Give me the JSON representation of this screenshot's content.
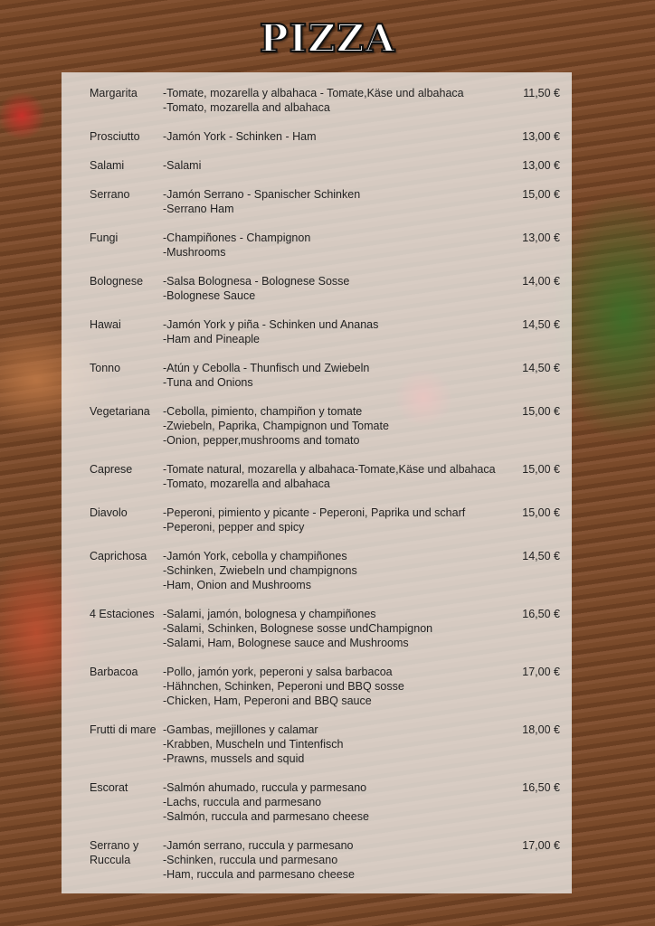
{
  "title": "PIZZA",
  "items": [
    {
      "name": "Margarita",
      "lines": [
        "-Tomate, mozarella y albahaca - Tomate,Käse und albahaca",
        "-Tomato, mozarella and albahaca"
      ],
      "price": "11,50 €"
    },
    {
      "name": "Prosciutto",
      "lines": [
        "-Jamón York - Schinken - Ham"
      ],
      "price": "13,00 €"
    },
    {
      "name": "Salami",
      "lines": [
        "-Salami"
      ],
      "price": "13,00 €"
    },
    {
      "name": "Serrano",
      "lines": [
        "-Jamón Serrano - Spanischer Schinken",
        "-Serrano Ham"
      ],
      "price": "15,00 €"
    },
    {
      "name": "Fungi",
      "lines": [
        "-Champiñones - Champignon",
        "-Mushrooms"
      ],
      "price": "13,00 €"
    },
    {
      "name": "Bolognese",
      "lines": [
        "-Salsa Bolognesa - Bolognese Sosse",
        "-Bolognese Sauce"
      ],
      "price": "14,00 €"
    },
    {
      "name": "Hawai",
      "lines": [
        "-Jamón York y piña - Schinken und Ananas",
        "-Ham and Pineaple"
      ],
      "price": "14,50 €"
    },
    {
      "name": "Tonno",
      "lines": [
        "-Atún y Cebolla - Thunfisch und Zwiebeln",
        "-Tuna and Onions"
      ],
      "price": "14,50 €"
    },
    {
      "name": "Vegetariana",
      "lines": [
        "-Cebolla, pimiento, champiñon y tomate",
        "-Zwiebeln, Paprika, Champignon und Tomate",
        "-Onion, pepper,mushrooms and tomato"
      ],
      "price": "15,00 €"
    },
    {
      "name": "Caprese",
      "lines": [
        "-Tomate natural, mozarella y albahaca-Tomate,Käse und albahaca",
        "-Tomato, mozarella and albahaca"
      ],
      "price": "15,00 €"
    },
    {
      "name": "Diavolo",
      "lines": [
        "-Peperoni, pimiento y picante - Peperoni, Paprika und scharf",
        "-Peperoni, pepper and spicy"
      ],
      "price": "15,00 €"
    },
    {
      "name": "Caprichosa",
      "lines": [
        "-Jamón York, cebolla y champiñones",
        "-Schinken, Zwiebeln und champignons",
        "-Ham, Onion and Mushrooms"
      ],
      "price": "14,50 €"
    },
    {
      "name": "4 Estaciones",
      "lines": [
        "-Salami, jamón, bolognesa y champiñones",
        "-Salami, Schinken, Bolognese sosse undChampignon",
        "-Salami, Ham,  Bolognese sauce and Mushrooms"
      ],
      "price": "16,50 €"
    },
    {
      "name": "Barbacoa",
      "lines": [
        "-Pollo, jamón york, peperoni y salsa barbacoa",
        "-Hähnchen, Schinken, Peperoni und BBQ sosse",
        "-Chicken, Ham, Peperoni and BBQ sauce"
      ],
      "price": "17,00 €"
    },
    {
      "name": "Frutti di mare",
      "lines": [
        "-Gambas, mejillones y calamar",
        "-Krabben, Muscheln und Tintenfisch",
        "-Prawns, mussels and squid"
      ],
      "price": "18,00 €"
    },
    {
      "name": "Escorat",
      "lines": [
        "-Salmón ahumado, ruccula y parmesano",
        "-Lachs, ruccula and parmesano",
        "-Salmón, ruccula and parmesano cheese"
      ],
      "price": "16,50 €"
    },
    {
      "name": "Serrano y Ruccula",
      "lines": [
        "-Jamón serrano, ruccula y parmesano",
        "-Schinken, ruccula und parmesano",
        "-Ham, ruccula and parmesano cheese"
      ],
      "price": "17,00 €"
    }
  ]
}
